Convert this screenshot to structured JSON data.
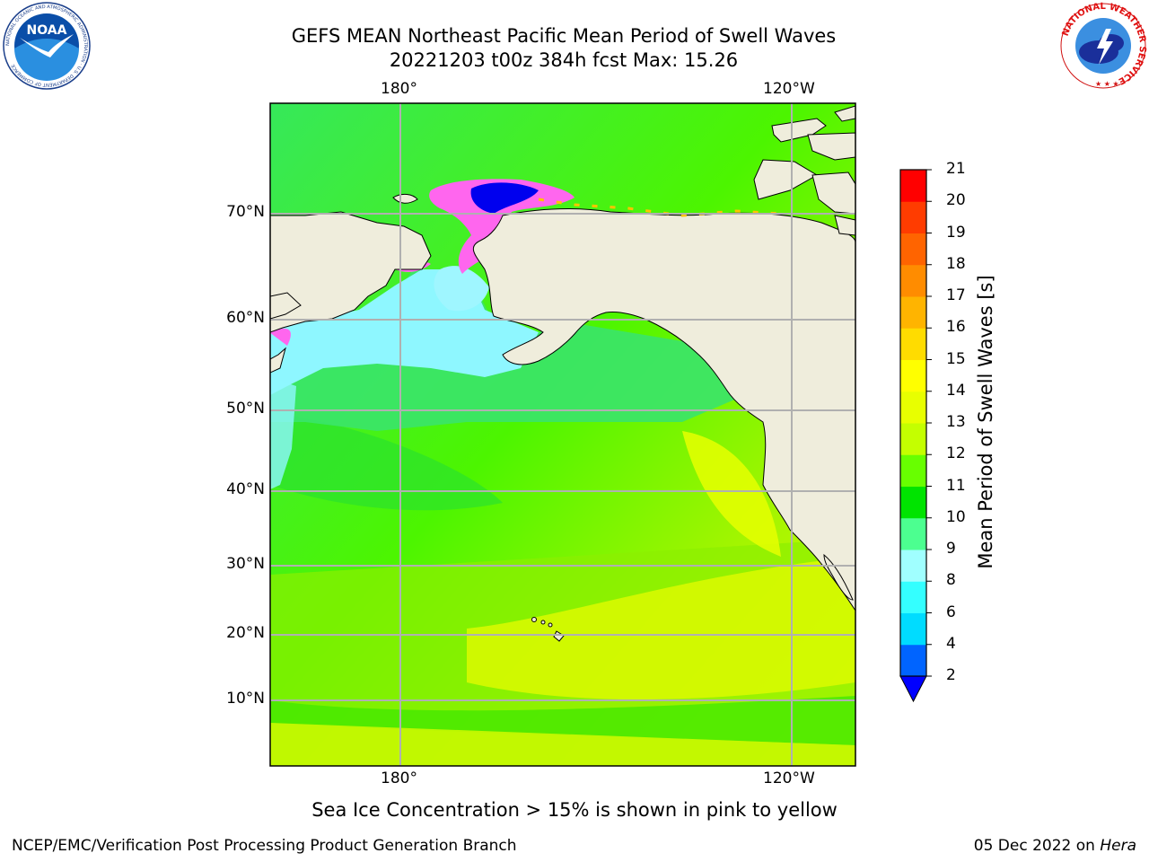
{
  "header": {
    "title_line1": "GEFS MEAN Northeast Pacific Mean Period of Swell Waves",
    "title_line2": "20221203 t00z 384h fcst   Max: 15.26"
  },
  "logos": {
    "noaa": {
      "text": "NOAA",
      "ring_text": "NATIONAL OCEANIC AND ATMOSPHERIC ADMINISTRATION · U.S. DEPARTMENT OF COMMERCE"
    },
    "nws": {
      "ring_text": "NATIONAL WEATHER SERVICE"
    }
  },
  "map": {
    "lon_labels_top": [
      "180°",
      "120°W"
    ],
    "lon_labels_bottom": [
      "180°",
      "120°W"
    ],
    "lat_labels": [
      "70°N",
      "60°N",
      "50°N",
      "40°N",
      "30°N",
      "20°N",
      "10°N"
    ],
    "land_color": "#efeddc",
    "gridline_color": "#b0b0b0"
  },
  "colorbar": {
    "title": "Mean Period of Swell Waves [s]",
    "ticks": [
      "21",
      "20",
      "19",
      "18",
      "17",
      "16",
      "15",
      "14",
      "13",
      "12",
      "11",
      "10",
      "9",
      "8",
      "6",
      "4",
      "2"
    ],
    "colors_bottom_to_top": [
      "#0064ff",
      "#00dcff",
      "#34ffff",
      "#a0ffff",
      "#4cff90",
      "#00e400",
      "#68ff00",
      "#c4ff00",
      "#e8ff00",
      "#ffff00",
      "#ffdc00",
      "#ffb400",
      "#ff8c00",
      "#ff6400",
      "#ff3c00",
      "#ff0000"
    ],
    "extend_color": "#0000ff"
  },
  "footer": {
    "note": "Sea Ice Concentration > 15% is shown in pink to yellow",
    "left": "NCEP/EMC/Verification Post Processing Product Generation Branch",
    "right_date": "05 Dec 2022 on",
    "right_host": "Hera"
  }
}
